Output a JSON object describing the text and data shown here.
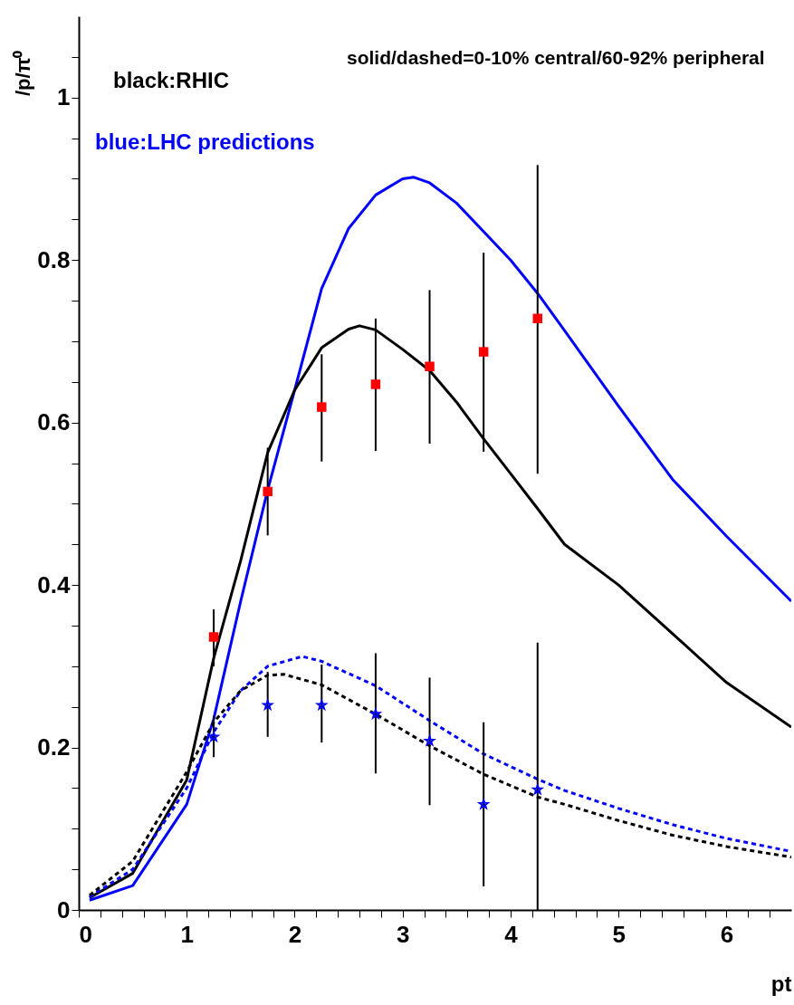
{
  "chart_data": {
    "type": "line",
    "xlabel": "pt",
    "ylabel": "/p/π⁰",
    "annotations": [
      "black:RHIC",
      "blue:LHC predictions",
      "solid/dashed=0-10% central/60-92% peripheral"
    ],
    "xlim": [
      0,
      6.6
    ],
    "ylim": [
      0,
      1.1
    ],
    "xticks": [
      0,
      {
        "value": 0.2,
        "label": null
      },
      {
        "value": 0.4,
        "label": null
      },
      {
        "value": 0.6,
        "label": null
      },
      {
        "value": 0.8,
        "label": null
      },
      1,
      {
        "value": 1.2,
        "label": null
      },
      {
        "value": 1.4,
        "label": null
      },
      {
        "value": 1.6,
        "label": null
      },
      {
        "value": 1.8,
        "label": null
      },
      2,
      {
        "value": 2.2,
        "label": null
      },
      {
        "value": 2.4,
        "label": null
      },
      {
        "value": 2.6,
        "label": null
      },
      {
        "value": 2.8,
        "label": null
      },
      3,
      {
        "value": 3.2,
        "label": null
      },
      {
        "value": 3.4,
        "label": null
      },
      {
        "value": 3.6,
        "label": null
      },
      {
        "value": 3.8,
        "label": null
      },
      4,
      {
        "value": 4.2,
        "label": null
      },
      {
        "value": 4.4,
        "label": null
      },
      {
        "value": 4.6,
        "label": null
      },
      {
        "value": 4.8,
        "label": null
      },
      5,
      {
        "value": 5.2,
        "label": null
      },
      {
        "value": 5.4,
        "label": null
      },
      {
        "value": 5.6,
        "label": null
      },
      {
        "value": 5.8,
        "label": null
      },
      6,
      {
        "value": 6.2,
        "label": null
      },
      {
        "value": 6.4,
        "label": null
      }
    ],
    "yticks": [
      0,
      {
        "value": 0.05,
        "label": null
      },
      {
        "value": 0.1,
        "label": null
      },
      {
        "value": 0.15,
        "label": null
      },
      0.2,
      {
        "value": 0.25,
        "label": null
      },
      {
        "value": 0.3,
        "label": null
      },
      {
        "value": 0.35,
        "label": null
      },
      0.4,
      {
        "value": 0.45,
        "label": null
      },
      {
        "value": 0.5,
        "label": null
      },
      {
        "value": 0.55,
        "label": null
      },
      0.6,
      {
        "value": 0.65,
        "label": null
      },
      {
        "value": 0.7,
        "label": null
      },
      {
        "value": 0.75,
        "label": null
      },
      0.8,
      {
        "value": 0.85,
        "label": null
      },
      {
        "value": 0.9,
        "label": null
      },
      {
        "value": 0.95,
        "label": null
      },
      1,
      {
        "value": 1.05,
        "label": null
      }
    ],
    "series": [
      {
        "type": "line",
        "color": "#0000ff",
        "line_style": "solid",
        "x": [
          0.1,
          0.5,
          1.0,
          1.25,
          1.5,
          1.75,
          2.0,
          2.25,
          2.5,
          2.75,
          3.0,
          3.1,
          3.25,
          3.5,
          4.0,
          4.25,
          4.5,
          5.0,
          5.5,
          6.0,
          6.6
        ],
        "values": [
          0.012,
          0.03,
          0.13,
          0.235,
          0.38,
          0.517,
          0.64,
          0.765,
          0.839,
          0.88,
          0.9,
          0.902,
          0.895,
          0.87,
          0.8,
          0.759,
          0.713,
          0.62,
          0.53,
          0.46,
          0.38
        ]
      },
      {
        "type": "line",
        "color": "#000000",
        "line_style": "solid",
        "x": [
          0.1,
          0.5,
          1.0,
          1.25,
          1.5,
          1.75,
          2.0,
          2.25,
          2.5,
          2.6,
          2.75,
          3.0,
          3.25,
          3.5,
          3.75,
          4.0,
          4.25,
          4.5,
          5.0,
          5.5,
          6.0,
          6.6
        ],
        "values": [
          0.015,
          0.045,
          0.16,
          0.31,
          0.43,
          0.563,
          0.64,
          0.692,
          0.715,
          0.719,
          0.714,
          0.69,
          0.664,
          0.625,
          0.58,
          0.537,
          0.494,
          0.45,
          0.4,
          0.34,
          0.28,
          0.225
        ]
      },
      {
        "type": "line",
        "color": "#0000ff",
        "line_style": "dashed",
        "x": [
          0.1,
          0.5,
          1.0,
          1.25,
          1.5,
          1.75,
          2.07,
          2.25,
          2.75,
          3.25,
          3.75,
          4.25,
          4.5,
          5.0,
          5.5,
          6.0,
          6.6
        ],
        "values": [
          0.016,
          0.05,
          0.15,
          0.219,
          0.27,
          0.3,
          0.312,
          0.306,
          0.276,
          0.233,
          0.192,
          0.161,
          0.147,
          0.125,
          0.105,
          0.088,
          0.072
        ]
      },
      {
        "type": "line",
        "color": "#000000",
        "line_style": "dashed",
        "x": [
          0.1,
          0.5,
          1.0,
          1.25,
          1.5,
          1.75,
          1.9,
          2.25,
          2.75,
          3.25,
          3.75,
          4.25,
          4.5,
          5.0,
          5.5,
          6.0,
          6.6
        ],
        "values": [
          0.018,
          0.06,
          0.17,
          0.231,
          0.27,
          0.289,
          0.29,
          0.277,
          0.241,
          0.202,
          0.167,
          0.139,
          0.13,
          0.11,
          0.092,
          0.078,
          0.065
        ]
      },
      {
        "type": "scatter",
        "color": "#ff0000",
        "marker": "square",
        "x": [
          1.25,
          1.75,
          2.25,
          2.75,
          3.25,
          3.75,
          4.25
        ],
        "values": [
          0.336,
          0.515,
          0.619,
          0.647,
          0.669,
          0.687,
          0.728
        ],
        "errors": [
          [
            0.3,
            0.37
          ],
          [
            0.461,
            0.569
          ],
          [
            0.552,
            0.684
          ],
          [
            0.565,
            0.728
          ],
          [
            0.574,
            0.763
          ],
          [
            0.564,
            0.809
          ],
          [
            0.537,
            0.917
          ]
        ]
      },
      {
        "type": "scatter",
        "color": "#0000ff",
        "marker": "star",
        "x": [
          1.25,
          1.75,
          2.25,
          2.75,
          3.25,
          3.75,
          4.25
        ],
        "values": [
          0.213,
          0.252,
          0.252,
          0.241,
          0.208,
          0.13,
          0.148
        ],
        "errors": [
          [
            0.188,
            0.239
          ],
          [
            0.213,
            0.293
          ],
          [
            0.206,
            0.302
          ],
          [
            0.168,
            0.316
          ],
          [
            0.129,
            0.286
          ],
          [
            0.029,
            0.231
          ],
          [
            0.0,
            0.329
          ]
        ]
      }
    ]
  }
}
